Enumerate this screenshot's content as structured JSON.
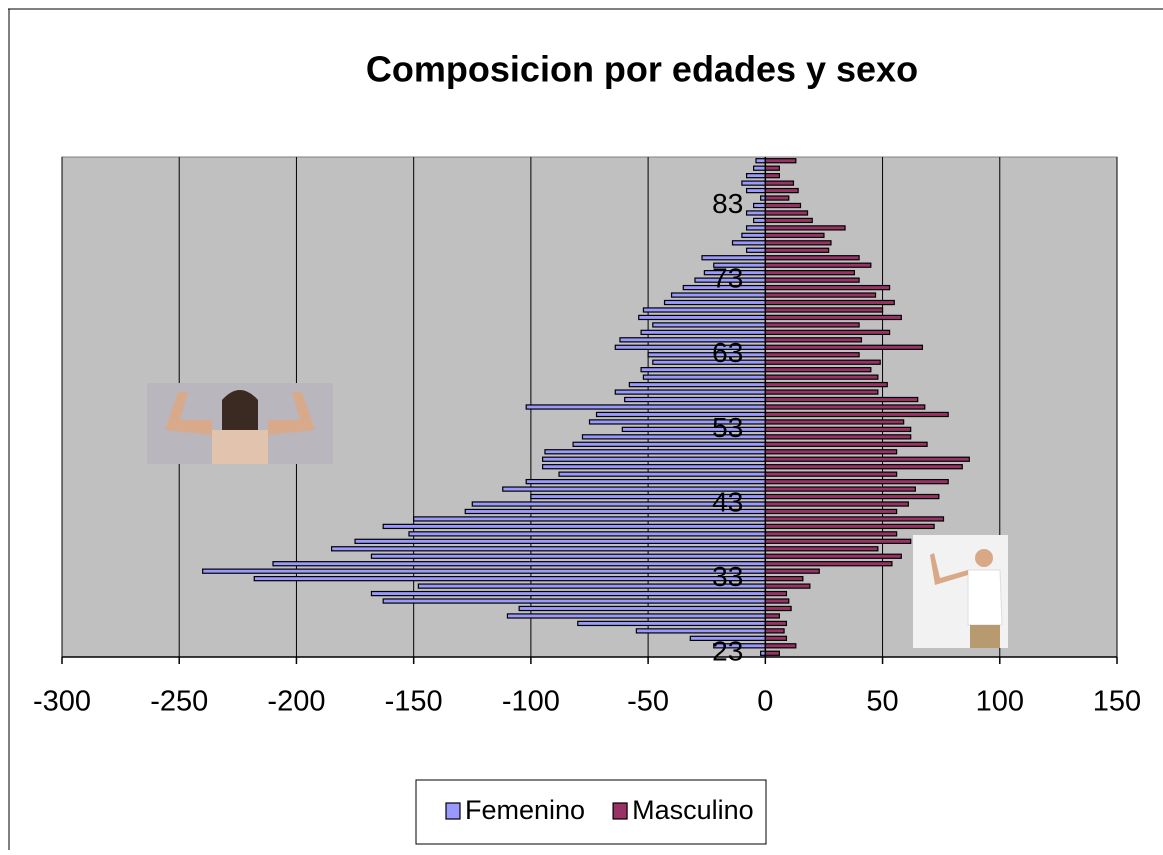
{
  "chart_data": {
    "type": "bar",
    "orientation": "horizontal",
    "title": "Composicion por edades y sexo",
    "categories": [
      "23",
      null,
      null,
      null,
      null,
      null,
      null,
      null,
      null,
      null,
      "33",
      null,
      null,
      null,
      null,
      null,
      null,
      null,
      null,
      null,
      "43",
      null,
      null,
      null,
      null,
      null,
      null,
      null,
      null,
      null,
      "53",
      null,
      null,
      null,
      null,
      null,
      null,
      null,
      null,
      null,
      "63",
      null,
      null,
      null,
      null,
      null,
      null,
      null,
      null,
      null,
      "73",
      null,
      null,
      null,
      null,
      null,
      null,
      null,
      null,
      null,
      "83",
      null,
      null,
      null,
      null,
      null,
      null
    ],
    "series": [
      {
        "name": "Femenino",
        "color": "#9999ff",
        "values": [
          -2,
          -22,
          -32,
          -55,
          -80,
          -110,
          -105,
          -163,
          -168,
          -148,
          -218,
          -240,
          -210,
          -168,
          -185,
          -175,
          -152,
          -163,
          -150,
          -128,
          -125,
          -100,
          -112,
          -102,
          -88,
          -95,
          -95,
          -94,
          -82,
          -78,
          -61,
          -75,
          -72,
          -102,
          -60,
          -64,
          -58,
          -52,
          -53,
          -48,
          -50,
          -64,
          -62,
          -53,
          -48,
          -54,
          -52,
          -43,
          -40,
          -35,
          -30,
          -26,
          -22,
          -27,
          -8,
          -14,
          -10,
          -8,
          -5,
          -8,
          -5,
          -2,
          -8,
          -10,
          -8,
          -5,
          -4
        ]
      },
      {
        "name": "Masculino",
        "color": "#993366",
        "values": [
          6,
          13,
          9,
          8,
          9,
          6,
          11,
          10,
          9,
          19,
          16,
          23,
          54,
          58,
          48,
          62,
          56,
          72,
          76,
          56,
          61,
          74,
          64,
          78,
          56,
          84,
          87,
          56,
          69,
          62,
          62,
          59,
          78,
          68,
          65,
          48,
          52,
          48,
          45,
          49,
          40,
          67,
          41,
          53,
          40,
          58,
          50,
          55,
          47,
          53,
          40,
          38,
          45,
          40,
          27,
          28,
          25,
          34,
          20,
          18,
          15,
          10,
          14,
          12,
          6,
          6,
          13
        ]
      }
    ],
    "xlim": [
      -300,
      150
    ],
    "xticks": [
      -300,
      -250,
      -200,
      -150,
      -100,
      -50,
      0,
      50,
      100,
      150
    ],
    "grid": true,
    "legend": "bottom"
  }
}
